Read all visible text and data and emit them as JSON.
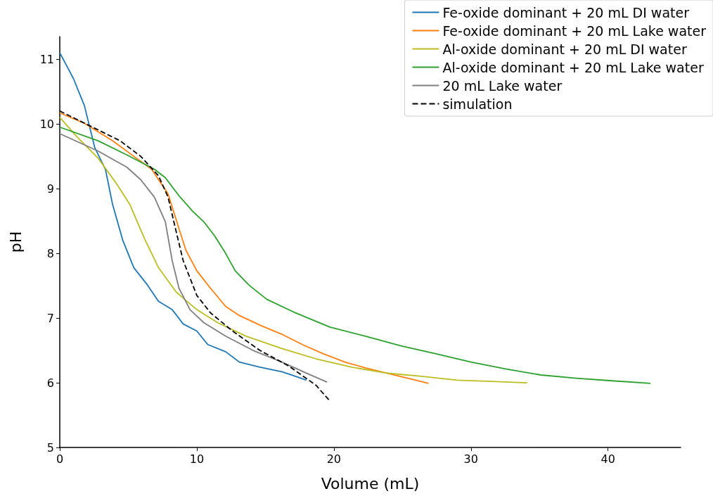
{
  "chart_data": {
    "type": "line",
    "xlabel": "Volume (mL)",
    "ylabel": "pH",
    "xlim": [
      0,
      45.3
    ],
    "ylim": [
      5,
      11.35
    ],
    "xticks": [
      0,
      10,
      20,
      30,
      40
    ],
    "yticks": [
      5,
      6,
      7,
      8,
      9,
      10,
      11
    ],
    "grid": false,
    "legend": "top right",
    "marker": "none",
    "series": [
      {
        "name": "Fe-oxide dominant + 20 mL DI water",
        "color": "#1f77b4",
        "line_style": "solid",
        "x": [
          0,
          0.5,
          1,
          1.8,
          2.56,
          3.33,
          3.85,
          4.6,
          5.4,
          6.4,
          7.2,
          8.2,
          9.0,
          10,
          10.8,
          12.1,
          13.1,
          14.6,
          16.2,
          17.2,
          18
        ],
        "values": [
          11.1,
          10.9,
          10.7,
          10.28,
          9.63,
          9.3,
          8.76,
          8.2,
          7.78,
          7.51,
          7.26,
          7.13,
          6.91,
          6.8,
          6.59,
          6.48,
          6.32,
          6.24,
          6.17,
          6.1,
          6.04
        ]
      },
      {
        "name": "Fe-oxide dominant + 20 mL Lake water",
        "color": "#ff7f0e",
        "line_style": "solid",
        "x": [
          0,
          1.8,
          3.85,
          5.4,
          6.7,
          7.9,
          8.7,
          9.2,
          10,
          11,
          12.1,
          13.1,
          14.6,
          16.2,
          17.7,
          19.2,
          20.8,
          22.3,
          23.8,
          25.4,
          26.9
        ],
        "values": [
          10.17,
          10.01,
          9.74,
          9.5,
          9.3,
          8.92,
          8.38,
          8.05,
          7.73,
          7.46,
          7.18,
          7.04,
          6.89,
          6.75,
          6.59,
          6.45,
          6.32,
          6.23,
          6.15,
          6.07,
          5.99
        ]
      },
      {
        "name": "Al-oxide dominant + 20 mL DI water",
        "color": "#bcbd22",
        "line_style": "solid",
        "x": [
          0,
          1.3,
          2.8,
          4.1,
          5.1,
          6.2,
          7.2,
          8.5,
          10,
          11.5,
          13.6,
          16.2,
          18.7,
          21.3,
          23.8,
          26.4,
          29,
          31.5,
          34.1
        ],
        "values": [
          10.1,
          9.79,
          9.47,
          9.09,
          8.76,
          8.22,
          7.78,
          7.4,
          7.13,
          6.93,
          6.72,
          6.53,
          6.37,
          6.24,
          6.15,
          6.1,
          6.04,
          6.02,
          6.0
        ]
      },
      {
        "name": "Al-oxide dominant + 20 mL Lake water",
        "color": "#2ca02c",
        "line_style": "solid",
        "x": [
          0,
          2.8,
          4.9,
          6.9,
          7.7,
          8.7,
          9.7,
          10.5,
          11.3,
          12.1,
          12.8,
          13.8,
          15.1,
          17.2,
          19.7,
          22.3,
          24.9,
          27.4,
          30,
          32.6,
          35.1,
          37.7,
          40.3,
          43.1
        ],
        "values": [
          9.95,
          9.74,
          9.52,
          9.3,
          9.17,
          8.89,
          8.65,
          8.49,
          8.27,
          8.0,
          7.73,
          7.51,
          7.29,
          7.08,
          6.86,
          6.72,
          6.57,
          6.45,
          6.32,
          6.21,
          6.12,
          6.07,
          6.03,
          5.99
        ]
      },
      {
        "name": "20 mL Lake water",
        "color": "#7f7f7f",
        "line_style": "solid",
        "x": [
          0,
          2.8,
          4.9,
          5.9,
          6.9,
          7.7,
          8.2,
          8.7,
          9.5,
          10.5,
          12.1,
          14.1,
          16.2,
          18.2,
          19.5
        ],
        "values": [
          9.85,
          9.58,
          9.33,
          9.14,
          8.87,
          8.49,
          7.89,
          7.46,
          7.13,
          6.93,
          6.72,
          6.5,
          6.32,
          6.13,
          6.01
        ]
      },
      {
        "name": "simulation",
        "color": "#000000",
        "line_style": "dashed",
        "x": [
          0,
          2.3,
          4.4,
          5.9,
          7.2,
          7.9,
          8.5,
          9,
          9.5,
          10,
          11,
          12.6,
          14.6,
          16.7,
          18.7,
          19.7
        ],
        "values": [
          10.2,
          9.96,
          9.74,
          9.5,
          9.2,
          8.87,
          8.33,
          7.89,
          7.62,
          7.35,
          7.08,
          6.8,
          6.5,
          6.26,
          5.96,
          5.72
        ]
      }
    ]
  }
}
